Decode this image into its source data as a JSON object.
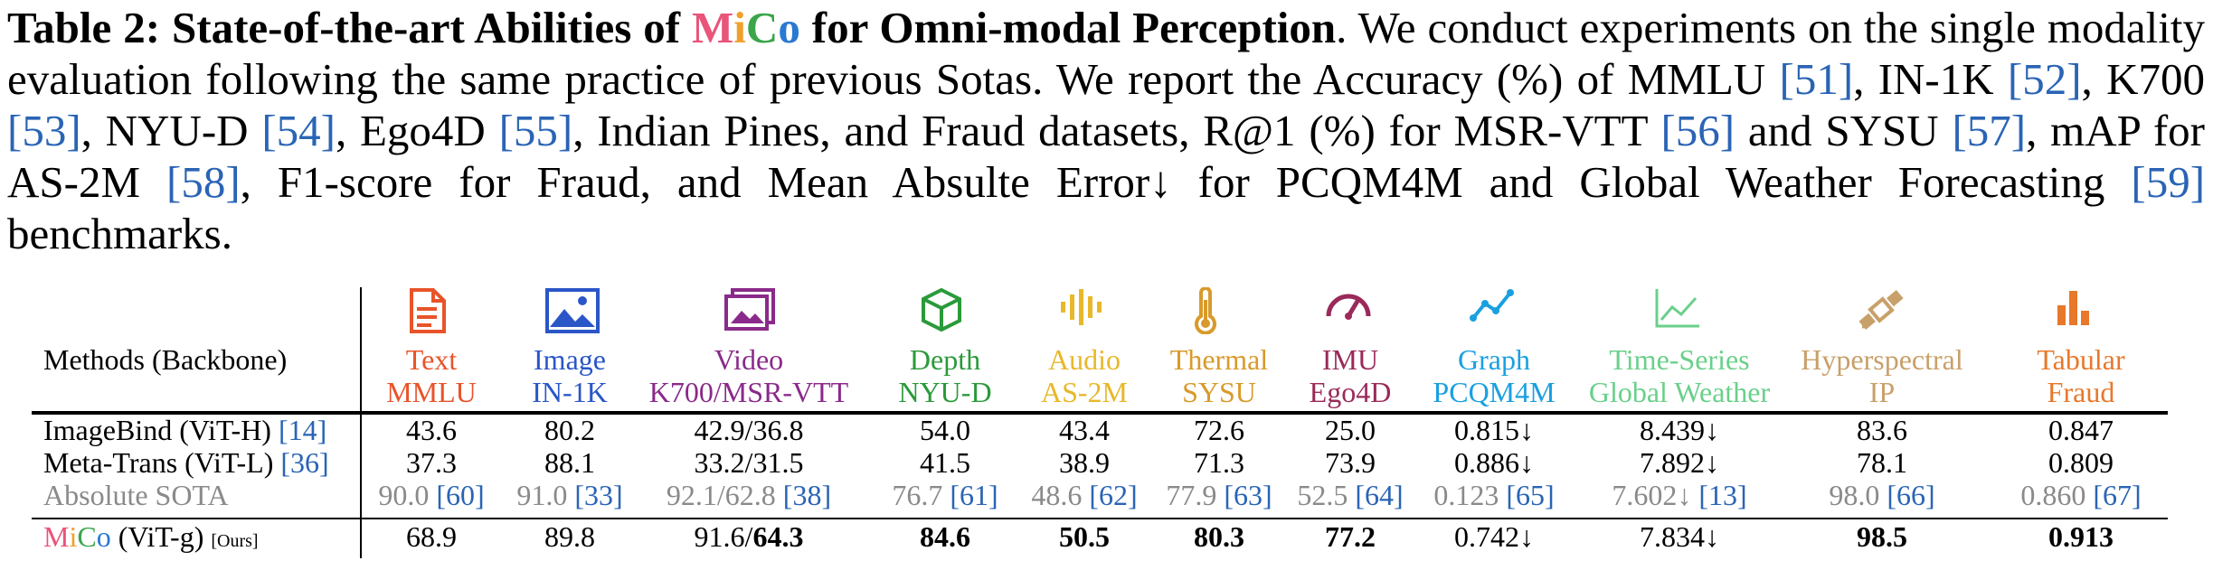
{
  "caption": {
    "lead_bold": "Table 2: State-of-the-art Abilities of ",
    "mico_letters": [
      "M",
      "i",
      "C",
      "o"
    ],
    "bold_tail": " for Omni-modal Perception",
    "text1": ". We conduct experiments on the single modality evaluation following the same practice of previous Sotas. We report the Accuracy (%) of MMLU ",
    "c51": "[51]",
    "t2": ", IN-1K ",
    "c52": "[52]",
    "t3": ", K700 ",
    "c53": "[53]",
    "t4": ", NYU-D ",
    "c54": "[54]",
    "t5": ", Ego4D ",
    "c55": "[55]",
    "t6": ", Indian Pines, and Fraud datasets, R@1 (%) for MSR-VTT ",
    "c56": "[56]",
    "t7": " and SYSU ",
    "c57": "[57]",
    "t8": ", mAP for AS-2M ",
    "c58": "[58]",
    "t9": ", F1-score for Fraud, and Mean Absulte Error↓ for PCQM4M and Global Weather Forecasting ",
    "c59": "[59]",
    "t10": " benchmarks."
  },
  "table": {
    "methods_header": "Methods (Backbone)",
    "columns": [
      {
        "name": "Text",
        "dataset": "MMLU",
        "color": "#e8542a",
        "icon": "document-icon"
      },
      {
        "name": "Image",
        "dataset": "IN-1K",
        "color": "#2a56c8",
        "icon": "image-icon"
      },
      {
        "name": "Video",
        "dataset": "K700/MSR-VTT",
        "color": "#8a2a8a",
        "icon": "video-icon"
      },
      {
        "name": "Depth",
        "dataset": "NYU-D",
        "color": "#2a9a3a",
        "icon": "cube-icon"
      },
      {
        "name": "Audio",
        "dataset": "AS-2M",
        "color": "#e8b82a",
        "icon": "audio-icon"
      },
      {
        "name": "Thermal",
        "dataset": "SYSU",
        "color": "#d89a2a",
        "icon": "thermometer-icon"
      },
      {
        "name": "IMU",
        "dataset": "Ego4D",
        "color": "#9a2a5a",
        "icon": "gauge-icon"
      },
      {
        "name": "Graph",
        "dataset": "PCQM4M",
        "color": "#1aa0e0",
        "icon": "graph-icon"
      },
      {
        "name": "Time-Series",
        "dataset": "Global Weather",
        "color": "#6ad08a",
        "icon": "timeseries-icon"
      },
      {
        "name": "Hyperspectral",
        "dataset": "IP",
        "color": "#c8a06a",
        "icon": "satellite-icon"
      },
      {
        "name": "Tabular",
        "dataset": "Fraud",
        "color": "#e8782a",
        "icon": "barchart-icon"
      }
    ],
    "rows": [
      {
        "method": "ImageBind (ViT-H) ",
        "cite": "[14]",
        "cells": [
          "43.6",
          "80.2",
          "42.9/36.8",
          "54.0",
          "43.4",
          "72.6",
          "25.0",
          "0.815↓",
          "8.439↓",
          "83.6",
          "0.847"
        ]
      },
      {
        "method": "Meta-Trans (ViT-L) ",
        "cite": "[36]",
        "cells": [
          "37.3",
          "88.1",
          "33.2/31.5",
          "41.5",
          "38.9",
          "71.3",
          "73.9",
          "0.886↓",
          "7.892↓",
          "78.1",
          "0.809"
        ]
      },
      {
        "method": "Absolute SOTA",
        "cite": "",
        "grey": true,
        "cells": [
          "90.0 [60]",
          "91.0 [33]",
          "92.1/62.8 [38]",
          "76.7 [61]",
          "48.6 [62]",
          "77.9 [63]",
          "52.5 [64]",
          "0.123 [65]",
          "7.602↓ [13]",
          "98.0 [66]",
          "0.860 [67]"
        ]
      },
      {
        "method": " (ViT-g) ",
        "cite": "",
        "mico": true,
        "tag": "[Ours]",
        "cells": [
          "68.9",
          "89.8",
          "91.6/64.3",
          "84.6",
          "50.5",
          "80.3",
          "77.2",
          "0.742↓",
          "7.834↓",
          "98.5",
          "0.913"
        ]
      }
    ]
  }
}
